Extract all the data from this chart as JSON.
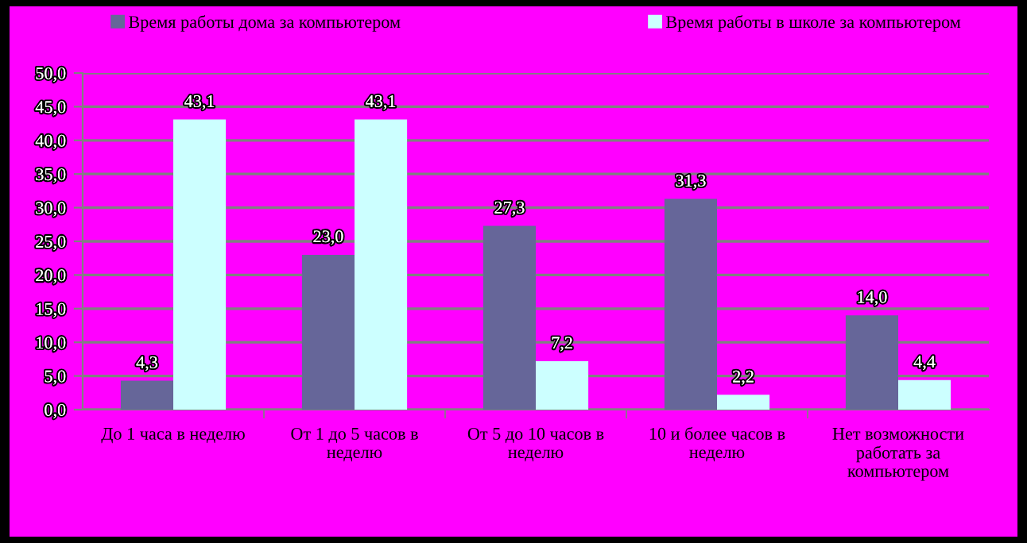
{
  "chart_data": {
    "type": "bar",
    "categories": [
      "До 1 часа в неделю",
      "От 1 до 5 часов в неделю",
      "От 5 до 10 часов в неделю",
      "10 и более часов в неделю",
      "Нет возможности работать за компьютером"
    ],
    "series": [
      {
        "name": "Время работы дома за компьютером",
        "color": "#666699",
        "values": [
          4.3,
          23.0,
          27.3,
          31.3,
          14.0
        ],
        "value_labels": [
          "4,3",
          "23,0",
          "27,3",
          "31,3",
          "14,0"
        ]
      },
      {
        "name": "Время работы в школе за компьютером",
        "color": "#ccffff",
        "values": [
          43.1,
          43.1,
          7.2,
          2.2,
          4.4
        ],
        "value_labels": [
          "43,1",
          "43,1",
          "7,2",
          "2,2",
          "4,4"
        ]
      }
    ],
    "ylim": [
      0,
      50
    ],
    "yticks": [
      {
        "value": 0,
        "label": "0,0"
      },
      {
        "value": 5,
        "label": "5,0"
      },
      {
        "value": 10,
        "label": "10,0"
      },
      {
        "value": 15,
        "label": "15,0"
      },
      {
        "value": 20,
        "label": "20,0"
      },
      {
        "value": 25,
        "label": "25,0"
      },
      {
        "value": 30,
        "label": "30,0"
      },
      {
        "value": 35,
        "label": "35,0"
      },
      {
        "value": 40,
        "label": "40,0"
      },
      {
        "value": 45,
        "label": "45,0"
      },
      {
        "value": 50,
        "label": "50,0"
      }
    ],
    "grid": "y",
    "legend": "top"
  }
}
